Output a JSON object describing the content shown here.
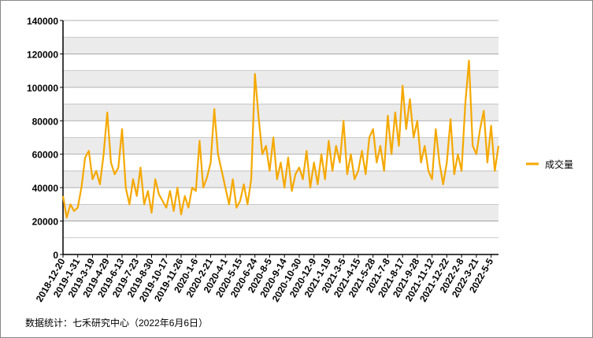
{
  "chart_data": {
    "type": "line",
    "source": "数据统计：七禾研究中心（2022年6月6日）",
    "categories": [
      "2018-12-20",
      null,
      null,
      null,
      "2019-1-31",
      null,
      null,
      null,
      "2019-3-19",
      null,
      null,
      null,
      "2019-4-29",
      null,
      null,
      null,
      "2019-6-13",
      null,
      null,
      null,
      "2019-7-23",
      null,
      null,
      null,
      "2019-8-30",
      null,
      null,
      null,
      "2019-10-17",
      null,
      null,
      null,
      "2019-11-26",
      null,
      null,
      null,
      "2020-1-6",
      null,
      null,
      null,
      "2020-2-21",
      null,
      null,
      null,
      "2020-4-1",
      null,
      null,
      null,
      "2020-5-15",
      null,
      null,
      null,
      "2020-6-24",
      null,
      null,
      null,
      "2020-8-5",
      null,
      null,
      null,
      "2020-9-14",
      null,
      null,
      null,
      "2020-10-30",
      null,
      null,
      null,
      "2020-12-9",
      null,
      null,
      null,
      "2021-1-19",
      null,
      null,
      null,
      "2021-3-5",
      null,
      null,
      null,
      "2021-4-15",
      null,
      null,
      null,
      "2021-5-28",
      null,
      null,
      null,
      "2021-7-8",
      null,
      null,
      null,
      "2021-8-17",
      null,
      null,
      null,
      "2021-9-28",
      null,
      null,
      null,
      "2021-11-12",
      null,
      null,
      null,
      "2021-12-22",
      null,
      null,
      null,
      "2022-2-8",
      null,
      null,
      null,
      "2022-3-21",
      null,
      null,
      null,
      "2022-5-5",
      null,
      null
    ],
    "series": [
      {
        "name": "成交量",
        "color": "#f5a800",
        "values": [
          35000,
          22000,
          30000,
          26000,
          28000,
          40000,
          58000,
          62000,
          45000,
          50000,
          42000,
          60000,
          85000,
          55000,
          48000,
          52000,
          75000,
          40000,
          30000,
          45000,
          35000,
          52000,
          30000,
          38000,
          25000,
          45000,
          36000,
          32000,
          28000,
          38000,
          26000,
          40000,
          24000,
          35000,
          28000,
          40000,
          38000,
          68000,
          40000,
          46000,
          55000,
          87000,
          60000,
          50000,
          40000,
          30000,
          45000,
          28000,
          32000,
          42000,
          30000,
          45000,
          108000,
          82000,
          60000,
          65000,
          50000,
          70000,
          45000,
          55000,
          40000,
          58000,
          38000,
          48000,
          52000,
          45000,
          62000,
          40000,
          55000,
          42000,
          60000,
          45000,
          68000,
          50000,
          65000,
          55000,
          80000,
          48000,
          60000,
          45000,
          50000,
          62000,
          48000,
          70000,
          75000,
          55000,
          65000,
          50000,
          83000,
          60000,
          85000,
          65000,
          101000,
          75000,
          93000,
          70000,
          80000,
          55000,
          65000,
          50000,
          45000,
          75000,
          55000,
          42000,
          55000,
          81000,
          48000,
          60000,
          50000,
          90000,
          116000,
          65000,
          60000,
          75000,
          86000,
          55000,
          77000,
          50000,
          65000
        ]
      }
    ],
    "ylim": [
      0,
      140000
    ],
    "yticks": [
      0,
      20000,
      40000,
      60000,
      80000,
      100000,
      120000,
      140000
    ],
    "grid": true,
    "legend": "right"
  }
}
